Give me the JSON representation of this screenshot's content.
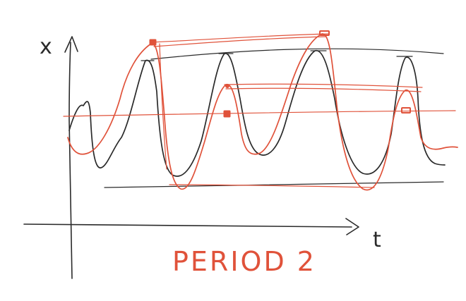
{
  "sketch": {
    "y_axis_label": "x",
    "x_axis_label": "t",
    "caption": "PERIOD 2"
  },
  "colors": {
    "ink": "#2a2a2a",
    "red": "#e0523a",
    "background": "#ffffff"
  }
}
